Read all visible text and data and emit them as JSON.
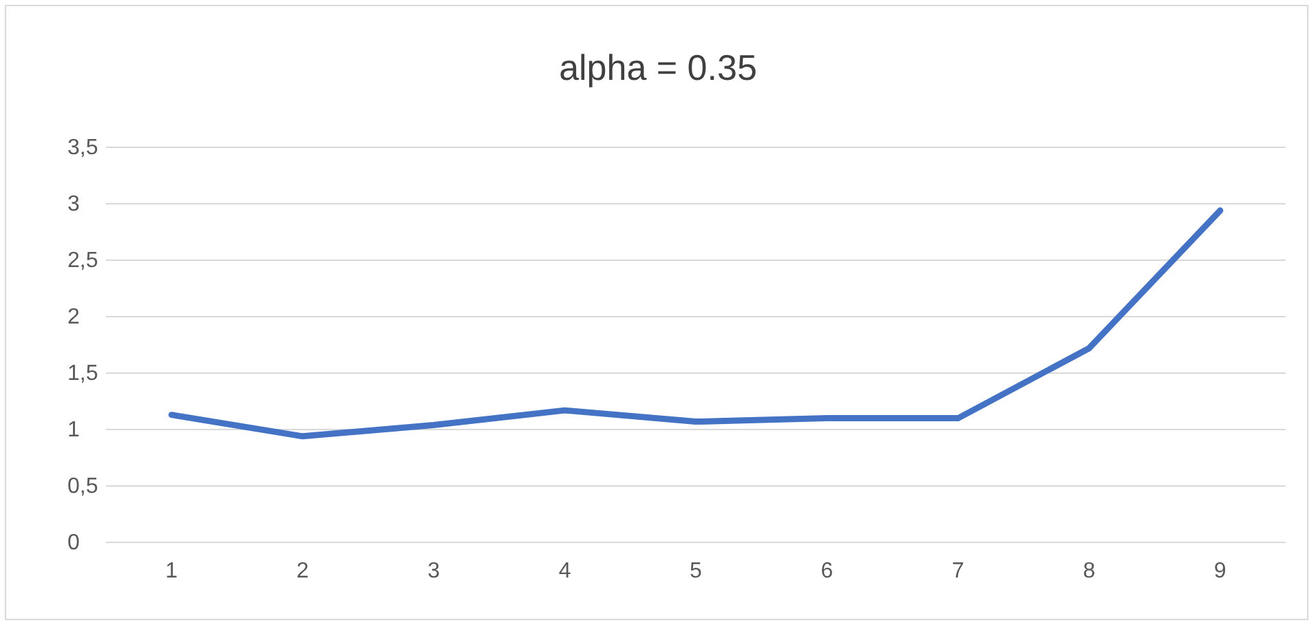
{
  "chart_data": {
    "type": "line",
    "title": "alpha = 0.35",
    "categories": [
      "1",
      "2",
      "3",
      "4",
      "5",
      "6",
      "7",
      "8",
      "9"
    ],
    "series": [
      {
        "color": "#4472c4",
        "values": [
          1.13,
          0.94,
          1.04,
          1.17,
          1.07,
          1.1,
          1.1,
          1.72,
          2.94
        ]
      }
    ],
    "ylim": [
      0,
      3.5
    ],
    "yticks": [
      0,
      {
        "value": 0.5,
        "label": "0,5"
      },
      1,
      {
        "value": 1.5,
        "label": "1,5"
      },
      2,
      {
        "value": 2.5,
        "label": "2,5"
      },
      3,
      {
        "value": 3.5,
        "label": "3,5"
      }
    ],
    "grid": "y",
    "marker": "none",
    "line_style": "solid"
  }
}
